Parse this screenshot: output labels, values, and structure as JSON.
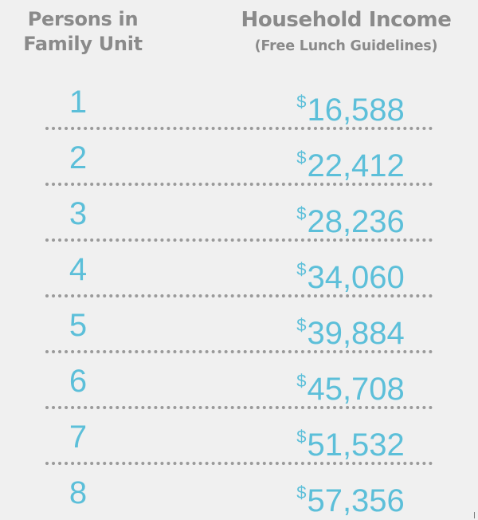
{
  "header": {
    "persons_line1": "Persons in",
    "persons_line2": "Family Unit",
    "income_title": "Household Income",
    "income_subtitle": "(Free Lunch Guidelines)"
  },
  "currency_symbol": "$",
  "rows": [
    {
      "persons": "1",
      "income": "16,588"
    },
    {
      "persons": "2",
      "income": "22,412"
    },
    {
      "persons": "3",
      "income": "28,236"
    },
    {
      "persons": "4",
      "income": "34,060"
    },
    {
      "persons": "5",
      "income": "39,884"
    },
    {
      "persons": "6",
      "income": "45,708"
    },
    {
      "persons": "7",
      "income": "51,532"
    },
    {
      "persons": "8",
      "income": "57,356"
    }
  ],
  "colors": {
    "background": "#f0f0f0",
    "header_text": "#8a8a8a",
    "value_text": "#5cbfd9",
    "divider": "#9a9a9a"
  }
}
